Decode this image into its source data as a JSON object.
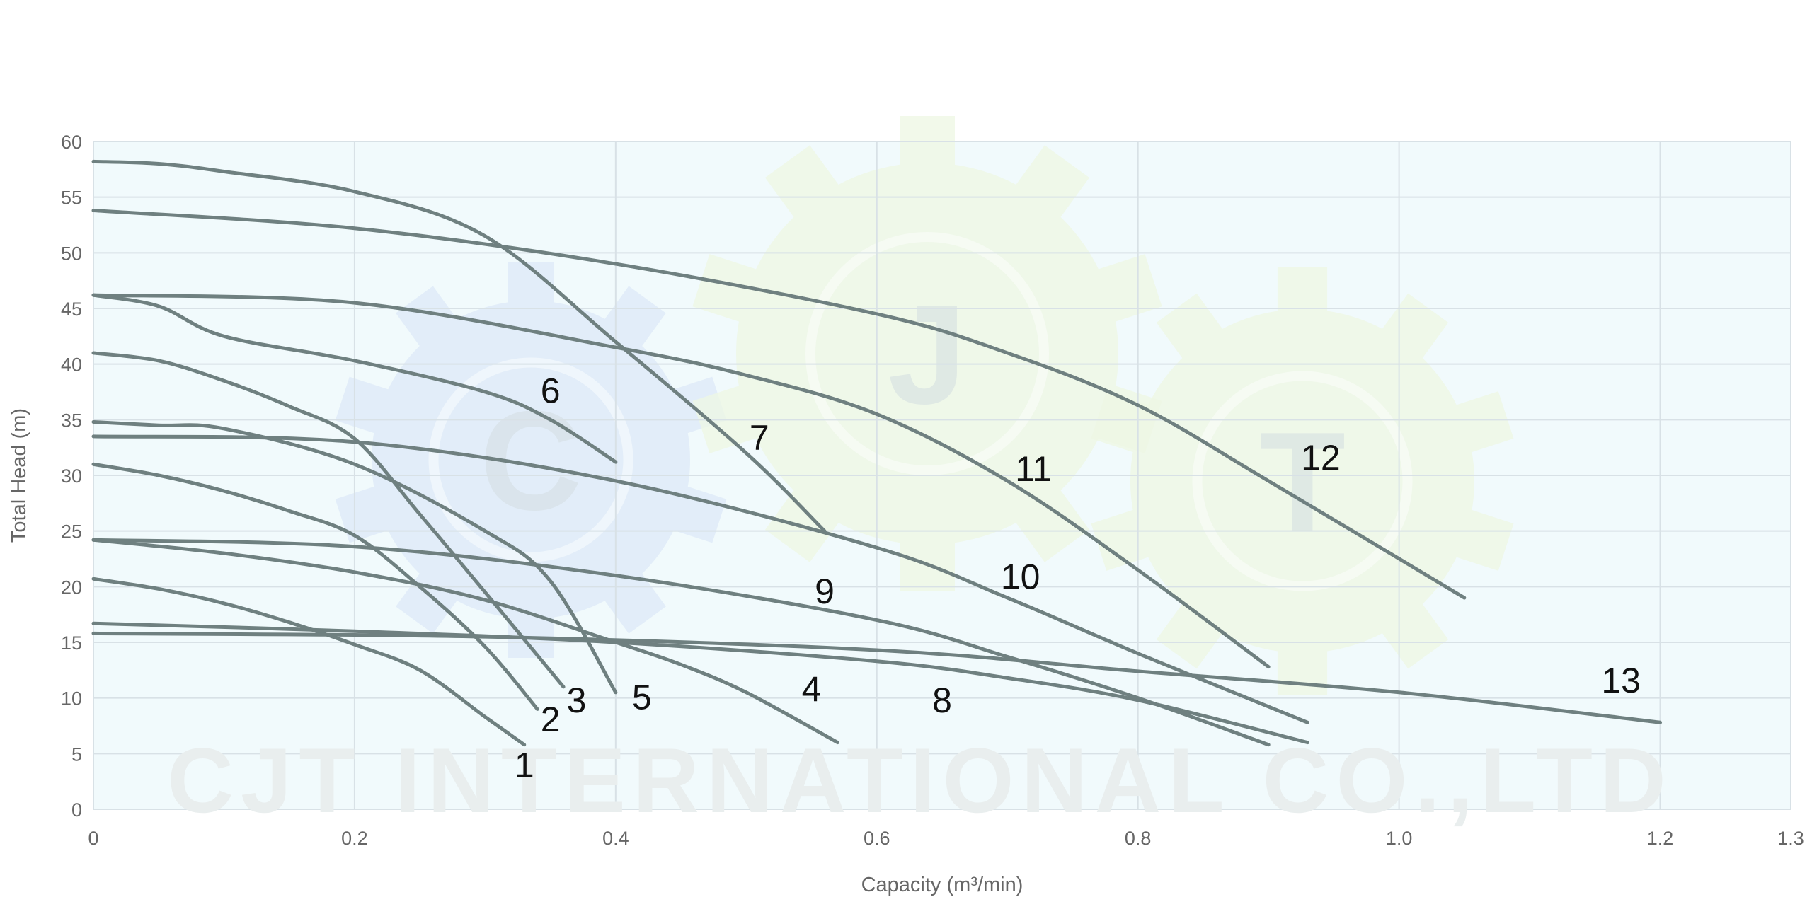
{
  "watermark": {
    "company": "CJT INTERNATIONAL CO.,LTD",
    "logo_letters": [
      "C",
      "J",
      "T"
    ]
  },
  "colors": {
    "plot_background": "#f1fafc",
    "grid": "#d8e1e6",
    "curve": "#6f8080",
    "label": "#111111",
    "tick_label": "#666666"
  },
  "chart_data": {
    "type": "line",
    "xlabel": "Capacity (m³/min)",
    "ylabel": "Total Head (m)",
    "xlim": [
      0,
      1.3
    ],
    "ylim": [
      0,
      60
    ],
    "x_ticks": [
      "0",
      "0.2",
      "0.4",
      "0.6",
      "0.8",
      "1.0",
      "1.2",
      "1.3"
    ],
    "y_ticks": [
      "0",
      "5",
      "10",
      "15",
      "20",
      "25",
      "30",
      "35",
      "40",
      "45",
      "50",
      "55",
      "60"
    ],
    "grid": true,
    "series": [
      {
        "name": "1",
        "label_at": [
          0.33,
          2.9
        ],
        "points": [
          [
            0,
            20.7
          ],
          [
            0.05,
            19.8
          ],
          [
            0.1,
            18.5
          ],
          [
            0.15,
            16.8
          ],
          [
            0.2,
            14.8
          ],
          [
            0.25,
            12.5
          ],
          [
            0.3,
            8.3
          ],
          [
            0.33,
            5.8
          ]
        ]
      },
      {
        "name": "2",
        "label_at": [
          0.35,
          7.0
        ],
        "points": [
          [
            0,
            31.0
          ],
          [
            0.05,
            30.0
          ],
          [
            0.1,
            28.6
          ],
          [
            0.15,
            26.8
          ],
          [
            0.2,
            24.6
          ],
          [
            0.25,
            20.0
          ],
          [
            0.3,
            14.6
          ],
          [
            0.34,
            9.0
          ]
        ]
      },
      {
        "name": "3",
        "label_at": [
          0.37,
          8.7
        ],
        "points": [
          [
            0,
            41.0
          ],
          [
            0.05,
            40.3
          ],
          [
            0.1,
            38.5
          ],
          [
            0.15,
            36.2
          ],
          [
            0.2,
            33.3
          ],
          [
            0.25,
            26.5
          ],
          [
            0.3,
            19.5
          ],
          [
            0.36,
            11.0
          ]
        ]
      },
      {
        "name": "4",
        "label_at": [
          0.55,
          9.7
        ],
        "points": [
          [
            0,
            24.2
          ],
          [
            0.1,
            23.0
          ],
          [
            0.2,
            21.3
          ],
          [
            0.3,
            18.8
          ],
          [
            0.4,
            15.0
          ],
          [
            0.45,
            13.0
          ],
          [
            0.5,
            10.5
          ],
          [
            0.57,
            6.0
          ]
        ]
      },
      {
        "name": "5",
        "label_at": [
          0.42,
          9.0
        ],
        "points": [
          [
            0,
            34.8
          ],
          [
            0.05,
            34.5
          ],
          [
            0.1,
            34.2
          ],
          [
            0.2,
            31.0
          ],
          [
            0.3,
            25.0
          ],
          [
            0.35,
            20.5
          ],
          [
            0.4,
            10.5
          ]
        ]
      },
      {
        "name": "6",
        "label_at": [
          0.35,
          36.5
        ],
        "points": [
          [
            0,
            46.2
          ],
          [
            0.05,
            45.2
          ],
          [
            0.1,
            42.5
          ],
          [
            0.2,
            40.3
          ],
          [
            0.3,
            37.5
          ],
          [
            0.35,
            35.0
          ],
          [
            0.4,
            31.2
          ]
        ]
      },
      {
        "name": "7",
        "label_at": [
          0.51,
          32.3
        ],
        "points": [
          [
            0,
            58.2
          ],
          [
            0.05,
            58.0
          ],
          [
            0.1,
            57.3
          ],
          [
            0.2,
            55.5
          ],
          [
            0.3,
            51.5
          ],
          [
            0.4,
            42.0
          ],
          [
            0.5,
            32.0
          ],
          [
            0.56,
            25.0
          ]
        ]
      },
      {
        "name": "8",
        "label_at": [
          0.65,
          8.7
        ],
        "points": [
          [
            0,
            16.7
          ],
          [
            0.2,
            16.0
          ],
          [
            0.4,
            15.0
          ],
          [
            0.6,
            13.3
          ],
          [
            0.7,
            11.8
          ],
          [
            0.8,
            9.8
          ],
          [
            0.93,
            6.0
          ]
        ]
      },
      {
        "name": "9",
        "label_at": [
          0.56,
          18.5
        ],
        "points": [
          [
            0,
            24.2
          ],
          [
            0.2,
            23.6
          ],
          [
            0.4,
            21.0
          ],
          [
            0.6,
            17.0
          ],
          [
            0.7,
            13.7
          ],
          [
            0.8,
            10.0
          ],
          [
            0.9,
            5.8
          ]
        ]
      },
      {
        "name": "10",
        "label_at": [
          0.71,
          19.8
        ],
        "points": [
          [
            0,
            33.5
          ],
          [
            0.2,
            33.0
          ],
          [
            0.4,
            29.5
          ],
          [
            0.6,
            23.5
          ],
          [
            0.7,
            19.0
          ],
          [
            0.8,
            14.0
          ],
          [
            0.93,
            7.8
          ]
        ]
      },
      {
        "name": "11",
        "label_at": [
          0.72,
          29.5
        ],
        "points": [
          [
            0,
            46.2
          ],
          [
            0.2,
            45.5
          ],
          [
            0.4,
            41.5
          ],
          [
            0.5,
            39.0
          ],
          [
            0.6,
            35.5
          ],
          [
            0.7,
            29.5
          ],
          [
            0.8,
            21.5
          ],
          [
            0.9,
            12.8
          ]
        ]
      },
      {
        "name": "12",
        "label_at": [
          0.94,
          30.5
        ],
        "points": [
          [
            0,
            53.8
          ],
          [
            0.2,
            52.2
          ],
          [
            0.4,
            49.0
          ],
          [
            0.6,
            44.5
          ],
          [
            0.7,
            41.0
          ],
          [
            0.8,
            36.3
          ],
          [
            0.9,
            29.5
          ],
          [
            1.05,
            19.0
          ]
        ]
      },
      {
        "name": "13",
        "label_at": [
          1.17,
          10.5
        ],
        "points": [
          [
            0,
            15.8
          ],
          [
            0.3,
            15.5
          ],
          [
            0.6,
            14.3
          ],
          [
            0.8,
            12.4
          ],
          [
            1.0,
            10.5
          ],
          [
            1.2,
            7.8
          ]
        ]
      }
    ]
  }
}
